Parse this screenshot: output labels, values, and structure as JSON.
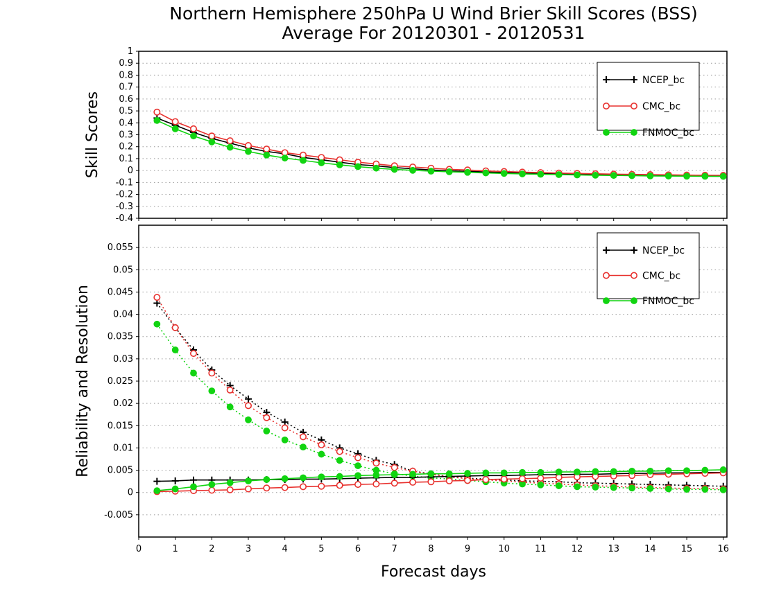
{
  "title": {
    "line1": "Northern Hemisphere 250hPa U Wind Brier Skill Scores (BSS)",
    "line2": "Average For 20120301 - 20120531"
  },
  "xlabel": "Forecast days",
  "colors": {
    "NCEP_bc": "#000000",
    "CMC_bc": "#e8312e",
    "FNMOC_bc": "#11d411",
    "grid": "#9a9a9a"
  },
  "chart_data": [
    {
      "type": "line",
      "panel": "top",
      "ylabel": "Skill Scores",
      "xlim": [
        0,
        16.1
      ],
      "ylim": [
        -0.4,
        1
      ],
      "xticks": [
        0,
        1,
        2,
        3,
        4,
        5,
        6,
        7,
        8,
        9,
        10,
        11,
        12,
        13,
        14,
        15,
        16
      ],
      "yticks": [
        -0.4,
        -0.3,
        -0.2,
        -0.1,
        0,
        0.1,
        0.2,
        0.3,
        0.4,
        0.5,
        0.6,
        0.7,
        0.8,
        0.9,
        1
      ],
      "ytick_labels": [
        "-0.4",
        "-0.3",
        "-0.2",
        "-0.1",
        "0",
        "0.1",
        "0.2",
        "0.3",
        "0.4",
        "0.5",
        "0.6",
        "0.7",
        "0.8",
        "0.9",
        "1"
      ],
      "grid": true,
      "legend": "top-right",
      "legend_entries": [
        "NCEP_bc",
        "CMC_bc",
        "FNMOC_bc"
      ],
      "x": [
        0.5,
        1,
        1.5,
        2,
        2.5,
        3,
        3.5,
        4,
        4.5,
        5,
        5.5,
        6,
        6.5,
        7,
        7.5,
        8,
        8.5,
        9,
        9.5,
        10,
        10.5,
        11,
        11.5,
        12,
        12.5,
        13,
        13.5,
        14,
        14.5,
        15,
        15.5,
        16
      ],
      "series": [
        {
          "name": "NCEP_bc",
          "marker": "plus",
          "line": "solid",
          "values": [
            0.44,
            0.38,
            0.32,
            0.27,
            0.23,
            0.19,
            0.16,
            0.14,
            0.11,
            0.09,
            0.07,
            0.05,
            0.04,
            0.025,
            0.015,
            0.005,
            -0.002,
            -0.007,
            -0.012,
            -0.016,
            -0.02,
            -0.023,
            -0.026,
            -0.028,
            -0.031,
            -0.033,
            -0.035,
            -0.037,
            -0.039,
            -0.041,
            -0.042,
            -0.043
          ]
        },
        {
          "name": "CMC_bc",
          "marker": "open-circle",
          "line": "solid",
          "values": [
            0.49,
            0.41,
            0.35,
            0.29,
            0.25,
            0.21,
            0.18,
            0.15,
            0.13,
            0.11,
            0.09,
            0.07,
            0.055,
            0.04,
            0.03,
            0.02,
            0.01,
            0.005,
            -0.003,
            -0.008,
            -0.013,
            -0.017,
            -0.021,
            -0.024,
            -0.027,
            -0.03,
            -0.032,
            -0.034,
            -0.036,
            -0.038,
            -0.039,
            -0.04
          ]
        },
        {
          "name": "FNMOC_bc",
          "marker": "filled-circle",
          "line": "solid",
          "values": [
            0.42,
            0.35,
            0.29,
            0.24,
            0.195,
            0.16,
            0.13,
            0.105,
            0.085,
            0.065,
            0.048,
            0.033,
            0.02,
            0.01,
            0.002,
            -0.005,
            -0.01,
            -0.015,
            -0.02,
            -0.024,
            -0.028,
            -0.031,
            -0.034,
            -0.037,
            -0.039,
            -0.041,
            -0.043,
            -0.045,
            -0.046,
            -0.047,
            -0.048,
            -0.049
          ]
        }
      ]
    },
    {
      "type": "line",
      "panel": "bottom",
      "ylabel": "Reliability and Resolution",
      "xlim": [
        0,
        16.1
      ],
      "ylim": [
        -0.01,
        0.06
      ],
      "xticks": [
        0,
        1,
        2,
        3,
        4,
        5,
        6,
        7,
        8,
        9,
        10,
        11,
        12,
        13,
        14,
        15,
        16
      ],
      "yticks": [
        -0.005,
        0,
        0.005,
        0.01,
        0.015,
        0.02,
        0.025,
        0.03,
        0.035,
        0.04,
        0.045,
        0.05,
        0.055
      ],
      "ytick_labels": [
        "-0.005",
        "0",
        "0.005",
        "0.01",
        "0.015",
        "0.02",
        "0.025",
        "0.03",
        "0.035",
        "0.04",
        "0.045",
        "0.05",
        "0.055"
      ],
      "grid": true,
      "legend": "top-right",
      "legend_entries": [
        "NCEP_bc",
        "CMC_bc",
        "FNMOC_bc"
      ],
      "x": [
        0.5,
        1,
        1.5,
        2,
        2.5,
        3,
        3.5,
        4,
        4.5,
        5,
        5.5,
        6,
        6.5,
        7,
        7.5,
        8,
        8.5,
        9,
        9.5,
        10,
        10.5,
        11,
        11.5,
        12,
        12.5,
        13,
        13.5,
        14,
        14.5,
        15,
        15.5,
        16
      ],
      "series": [
        {
          "name": "NCEP_bc",
          "marker": "plus",
          "line": "dotted",
          "values": [
            0.0425,
            0.037,
            0.032,
            0.0275,
            0.024,
            0.021,
            0.018,
            0.0158,
            0.0135,
            0.0118,
            0.01,
            0.0087,
            0.0072,
            0.0063,
            0.0048,
            0.0042,
            0.0035,
            0.0032,
            0.003,
            0.0028,
            0.0026,
            0.0025,
            0.0024,
            0.0022,
            0.0021,
            0.002,
            0.0019,
            0.0018,
            0.0017,
            0.0016,
            0.0015,
            0.0014
          ]
        },
        {
          "name": "CMC_bc",
          "marker": "open-circle",
          "line": "dotted",
          "values": [
            0.0438,
            0.037,
            0.0312,
            0.0268,
            0.023,
            0.0195,
            0.0168,
            0.0145,
            0.0125,
            0.0107,
            0.0092,
            0.0078,
            0.0066,
            0.0056,
            0.0048,
            0.0041,
            0.0035,
            0.0031,
            0.0028,
            0.0026,
            0.0023,
            0.0021,
            0.0019,
            0.0017,
            0.0015,
            0.0014,
            0.0012,
            0.0011,
            0.001,
            0.0009,
            0.0009,
            0.0008
          ]
        },
        {
          "name": "FNMOC_bc",
          "marker": "filled-circle",
          "line": "dotted",
          "values": [
            0.0378,
            0.032,
            0.0268,
            0.0228,
            0.0192,
            0.0163,
            0.0138,
            0.0118,
            0.0102,
            0.0086,
            0.0072,
            0.006,
            0.005,
            0.0042,
            0.0037,
            0.0033,
            0.003,
            0.0027,
            0.0024,
            0.0021,
            0.0019,
            0.0017,
            0.0015,
            0.0013,
            0.0012,
            0.0011,
            0.001,
            0.0009,
            0.0008,
            0.0007,
            0.0007,
            0.0006
          ]
        },
        {
          "name": "NCEP_bc",
          "marker": "plus",
          "line": "solid",
          "values": [
            0.0025,
            0.0026,
            0.0028,
            0.0028,
            0.0028,
            0.0028,
            0.0029,
            0.0029,
            0.003,
            0.003,
            0.0031,
            0.0032,
            0.0033,
            0.0034,
            0.0034,
            0.0035,
            0.0036,
            0.0037,
            0.0038,
            0.0038,
            0.0039,
            0.004,
            0.004,
            0.0041,
            0.0041,
            0.0042,
            0.0043,
            0.0043,
            0.0044,
            0.0044,
            0.0045,
            0.0045
          ]
        },
        {
          "name": "CMC_bc",
          "marker": "open-circle",
          "line": "solid",
          "values": [
            0.0002,
            0.0003,
            0.0004,
            0.0005,
            0.0006,
            0.0008,
            0.001,
            0.0011,
            0.0013,
            0.0014,
            0.0016,
            0.0018,
            0.0019,
            0.0021,
            0.0023,
            0.0024,
            0.0026,
            0.0027,
            0.0029,
            0.003,
            0.0031,
            0.0032,
            0.0034,
            0.0035,
            0.0036,
            0.0037,
            0.0038,
            0.004,
            0.0041,
            0.0042,
            0.0043,
            0.0044
          ]
        },
        {
          "name": "FNMOC_bc",
          "marker": "filled-circle",
          "line": "solid",
          "values": [
            0.0004,
            0.0008,
            0.0013,
            0.0018,
            0.0022,
            0.0026,
            0.0029,
            0.0031,
            0.0033,
            0.0035,
            0.0036,
            0.0038,
            0.0039,
            0.004,
            0.0041,
            0.0042,
            0.0042,
            0.0043,
            0.0044,
            0.0044,
            0.0045,
            0.0045,
            0.0046,
            0.0046,
            0.0047,
            0.0047,
            0.0048,
            0.0048,
            0.0049,
            0.0049,
            0.005,
            0.0051
          ]
        }
      ]
    }
  ]
}
